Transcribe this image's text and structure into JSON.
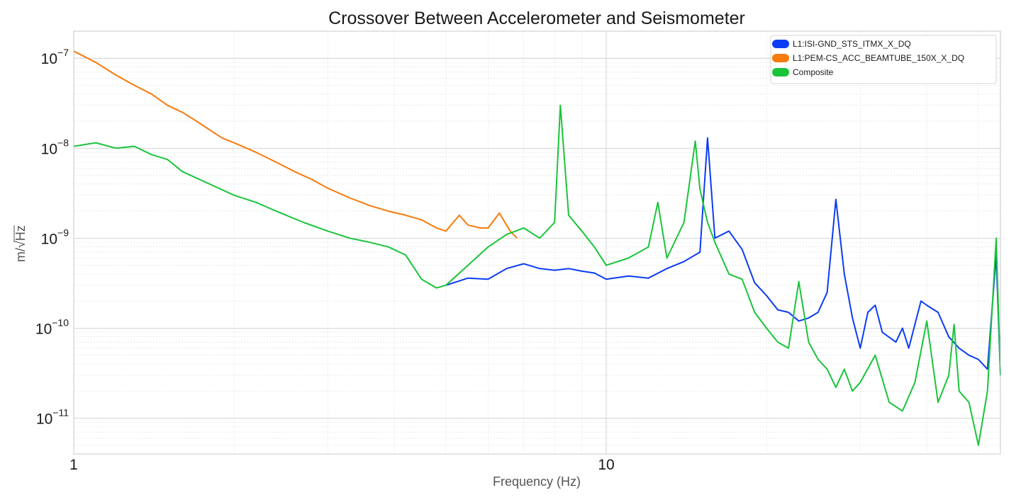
{
  "chart_data": {
    "type": "line",
    "title": "Crossover Between Accelerometer and Seismometer",
    "xlabel": "Frequency (Hz)",
    "ylabel_prefix": "m/",
    "ylabel_radical": "√",
    "ylabel_radicand": "Hz",
    "x_scale": "log",
    "y_scale": "log",
    "xlim": [
      1,
      55
    ],
    "ylim": [
      4e-12,
      2e-07
    ],
    "x_ticks": [
      {
        "value": 1,
        "label": "1"
      },
      {
        "value": 10,
        "label": "10"
      }
    ],
    "y_ticks": [
      {
        "value": 1e-07,
        "base": "10",
        "exp": "−7"
      },
      {
        "value": 1e-08,
        "base": "10",
        "exp": "−8"
      },
      {
        "value": 1e-09,
        "base": "10",
        "exp": "−9"
      },
      {
        "value": 1e-10,
        "base": "10",
        "exp": "−10"
      },
      {
        "value": 1e-11,
        "base": "10",
        "exp": "−11"
      }
    ],
    "grid": true,
    "legend_position": "top-right",
    "series": [
      {
        "name": "L1:ISI-GND_STS_ITMX_X_DQ",
        "color": "#0b3cf5",
        "points": [
          [
            5.0,
            3e-10
          ],
          [
            5.5,
            3.6e-10
          ],
          [
            6.0,
            3.5e-10
          ],
          [
            6.5,
            4.6e-10
          ],
          [
            7.0,
            5.2e-10
          ],
          [
            7.5,
            4.6e-10
          ],
          [
            8.0,
            4.4e-10
          ],
          [
            8.5,
            4.6e-10
          ],
          [
            9.0,
            4.3e-10
          ],
          [
            9.5,
            4.1e-10
          ],
          [
            10.0,
            3.5e-10
          ],
          [
            11.0,
            3.8e-10
          ],
          [
            12.0,
            3.6e-10
          ],
          [
            13.0,
            4.6e-10
          ],
          [
            14.0,
            5.5e-10
          ],
          [
            15.0,
            7e-10
          ],
          [
            15.5,
            1.3e-08
          ],
          [
            16.0,
            1e-09
          ],
          [
            17.0,
            1.2e-09
          ],
          [
            18.0,
            7.5e-10
          ],
          [
            19.0,
            3.2e-10
          ],
          [
            20.0,
            2.3e-10
          ],
          [
            21.0,
            1.6e-10
          ],
          [
            22.0,
            1.5e-10
          ],
          [
            23.0,
            1.2e-10
          ],
          [
            24.0,
            1.3e-10
          ],
          [
            25.0,
            1.5e-10
          ],
          [
            26.0,
            2.5e-10
          ],
          [
            27.0,
            2.7e-09
          ],
          [
            28.0,
            4e-10
          ],
          [
            29.0,
            1.3e-10
          ],
          [
            30.0,
            6e-11
          ],
          [
            31.0,
            1.5e-10
          ],
          [
            32.0,
            1.8e-10
          ],
          [
            33.0,
            9e-11
          ],
          [
            35.0,
            7e-11
          ],
          [
            36.0,
            1e-10
          ],
          [
            37.0,
            6e-11
          ],
          [
            39.0,
            2e-10
          ],
          [
            40.0,
            1.8e-10
          ],
          [
            42.0,
            1.5e-10
          ],
          [
            44.0,
            8e-11
          ],
          [
            46.0,
            6e-11
          ],
          [
            48.0,
            5e-11
          ],
          [
            50.0,
            4.5e-11
          ],
          [
            52.0,
            3.5e-11
          ],
          [
            54.0,
            6.5e-10
          ],
          [
            55.0,
            3e-11
          ]
        ]
      },
      {
        "name": "L1:PEM-CS_ACC_BEAMTUBE_150X_X_DQ",
        "color": "#f77a0c",
        "points": [
          [
            1.0,
            1.2e-07
          ],
          [
            1.1,
            9e-08
          ],
          [
            1.2,
            6.5e-08
          ],
          [
            1.3,
            5e-08
          ],
          [
            1.4,
            4e-08
          ],
          [
            1.5,
            3e-08
          ],
          [
            1.6,
            2.5e-08
          ],
          [
            1.7,
            2e-08
          ],
          [
            1.8,
            1.6e-08
          ],
          [
            1.9,
            1.3e-08
          ],
          [
            2.0,
            1.15e-08
          ],
          [
            2.2,
            9e-09
          ],
          [
            2.4,
            7e-09
          ],
          [
            2.6,
            5.5e-09
          ],
          [
            2.8,
            4.5e-09
          ],
          [
            3.0,
            3.6e-09
          ],
          [
            3.3,
            2.8e-09
          ],
          [
            3.6,
            2.3e-09
          ],
          [
            3.9,
            2e-09
          ],
          [
            4.2,
            1.8e-09
          ],
          [
            4.5,
            1.6e-09
          ],
          [
            4.8,
            1.3e-09
          ],
          [
            5.0,
            1.2e-09
          ],
          [
            5.3,
            1.8e-09
          ],
          [
            5.5,
            1.4e-09
          ],
          [
            5.8,
            1.3e-09
          ],
          [
            6.0,
            1.3e-09
          ],
          [
            6.3,
            1.9e-09
          ],
          [
            6.6,
            1.2e-09
          ],
          [
            6.8,
            1e-09
          ]
        ]
      },
      {
        "name": "Composite",
        "color": "#1ac43a",
        "points": [
          [
            1.0,
            1.05e-08
          ],
          [
            1.1,
            1.15e-08
          ],
          [
            1.2,
            1e-08
          ],
          [
            1.3,
            1.05e-08
          ],
          [
            1.4,
            8.5e-09
          ],
          [
            1.5,
            7.5e-09
          ],
          [
            1.6,
            5.5e-09
          ],
          [
            1.8,
            4e-09
          ],
          [
            2.0,
            3e-09
          ],
          [
            2.2,
            2.5e-09
          ],
          [
            2.4,
            2e-09
          ],
          [
            2.7,
            1.5e-09
          ],
          [
            3.0,
            1.2e-09
          ],
          [
            3.3,
            1e-09
          ],
          [
            3.6,
            9e-10
          ],
          [
            3.9,
            8e-10
          ],
          [
            4.2,
            6.5e-10
          ],
          [
            4.5,
            3.5e-10
          ],
          [
            4.8,
            2.8e-10
          ],
          [
            5.0,
            3e-10
          ],
          [
            5.5,
            5e-10
          ],
          [
            6.0,
            8e-10
          ],
          [
            6.5,
            1.1e-09
          ],
          [
            7.0,
            1.3e-09
          ],
          [
            7.5,
            1e-09
          ],
          [
            8.0,
            1.5e-09
          ],
          [
            8.2,
            3e-08
          ],
          [
            8.5,
            1.8e-09
          ],
          [
            9.0,
            1.2e-09
          ],
          [
            9.5,
            8e-10
          ],
          [
            10.0,
            5e-10
          ],
          [
            11.0,
            6e-10
          ],
          [
            12.0,
            8e-10
          ],
          [
            12.5,
            2.5e-09
          ],
          [
            13.0,
            6e-10
          ],
          [
            14.0,
            1.5e-09
          ],
          [
            14.7,
            1.2e-08
          ],
          [
            15.0,
            3.5e-09
          ],
          [
            15.5,
            1.5e-09
          ],
          [
            16.0,
            9e-10
          ],
          [
            17.0,
            4e-10
          ],
          [
            18.0,
            3.5e-10
          ],
          [
            19.0,
            1.5e-10
          ],
          [
            20.0,
            1e-10
          ],
          [
            21.0,
            7e-11
          ],
          [
            22.0,
            6e-11
          ],
          [
            23.0,
            3.3e-10
          ],
          [
            24.0,
            7e-11
          ],
          [
            25.0,
            4.5e-11
          ],
          [
            26.0,
            3.5e-11
          ],
          [
            27.0,
            2.2e-11
          ],
          [
            28.0,
            3.5e-11
          ],
          [
            29.0,
            2e-11
          ],
          [
            30.0,
            2.5e-11
          ],
          [
            32.0,
            5e-11
          ],
          [
            34.0,
            1.5e-11
          ],
          [
            36.0,
            1.2e-11
          ],
          [
            38.0,
            2.5e-11
          ],
          [
            40.0,
            1.2e-10
          ],
          [
            42.0,
            1.5e-11
          ],
          [
            44.0,
            3e-11
          ],
          [
            45.0,
            1.1e-10
          ],
          [
            46.0,
            2e-11
          ],
          [
            48.0,
            1.5e-11
          ],
          [
            50.0,
            5e-12
          ],
          [
            52.0,
            2e-11
          ],
          [
            54.0,
            1e-09
          ],
          [
            55.0,
            3e-11
          ]
        ]
      }
    ]
  }
}
